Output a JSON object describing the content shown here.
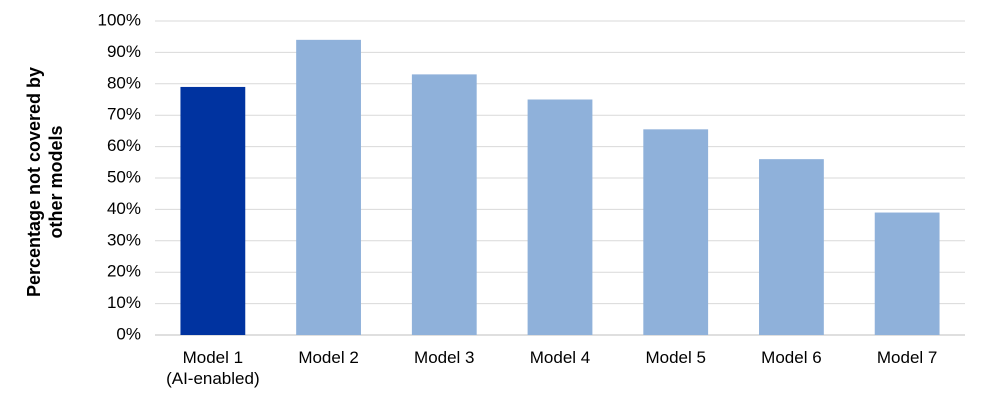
{
  "chart_data": {
    "type": "bar",
    "y_label": "Percentage not covered by\nother models",
    "categories": [
      "Model 1\n(AI-enabled)",
      "Model 2",
      "Model 3",
      "Model 4",
      "Model 5",
      "Model 6",
      "Model 7"
    ],
    "values": [
      79,
      94,
      83,
      75,
      65.5,
      56,
      39
    ],
    "colors": [
      "#0033a0",
      "#8fb1da",
      "#8fb1da",
      "#8fb1da",
      "#8fb1da",
      "#8fb1da",
      "#8fb1da"
    ],
    "ylim": [
      0,
      100
    ],
    "yticks": [
      {
        "value": 0,
        "label": "0%"
      },
      {
        "value": 10,
        "label": "10%"
      },
      {
        "value": 20,
        "label": "20%"
      },
      {
        "value": 30,
        "label": "30%"
      },
      {
        "value": 40,
        "label": "40%"
      },
      {
        "value": 50,
        "label": "50%"
      },
      {
        "value": 60,
        "label": "60%"
      },
      {
        "value": 70,
        "label": "70%"
      },
      {
        "value": 80,
        "label": "80%"
      },
      {
        "value": 90,
        "label": "90%"
      },
      {
        "value": 100,
        "label": "100%"
      }
    ],
    "grid": true
  }
}
